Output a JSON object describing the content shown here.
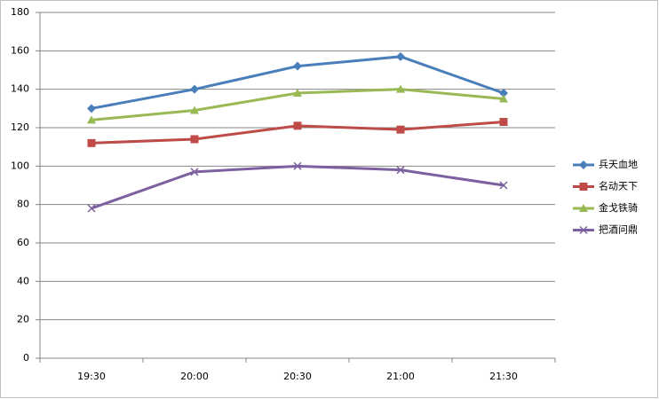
{
  "chart_data": {
    "type": "line",
    "categories": [
      "19:30",
      "20:00",
      "20:30",
      "21:00",
      "21:30"
    ],
    "series": [
      {
        "name": "兵天血地",
        "color": "#4a7ebb",
        "marker": "diamond",
        "values": [
          130,
          140,
          152,
          157,
          138
        ]
      },
      {
        "name": "名动天下",
        "color": "#be4b48",
        "marker": "square",
        "values": [
          112,
          114,
          121,
          119,
          123
        ]
      },
      {
        "name": "金戈铁骑",
        "color": "#98b954",
        "marker": "triangle",
        "values": [
          124,
          129,
          138,
          140,
          135
        ]
      },
      {
        "name": "把酒问鼎",
        "color": "#7d60a0",
        "marker": "x",
        "values": [
          78,
          97,
          100,
          98,
          90
        ]
      }
    ],
    "ylim": [
      0,
      180
    ],
    "yticks": [
      0,
      20,
      40,
      60,
      80,
      100,
      120,
      140,
      160,
      180
    ],
    "grid": true,
    "legend": "right"
  }
}
